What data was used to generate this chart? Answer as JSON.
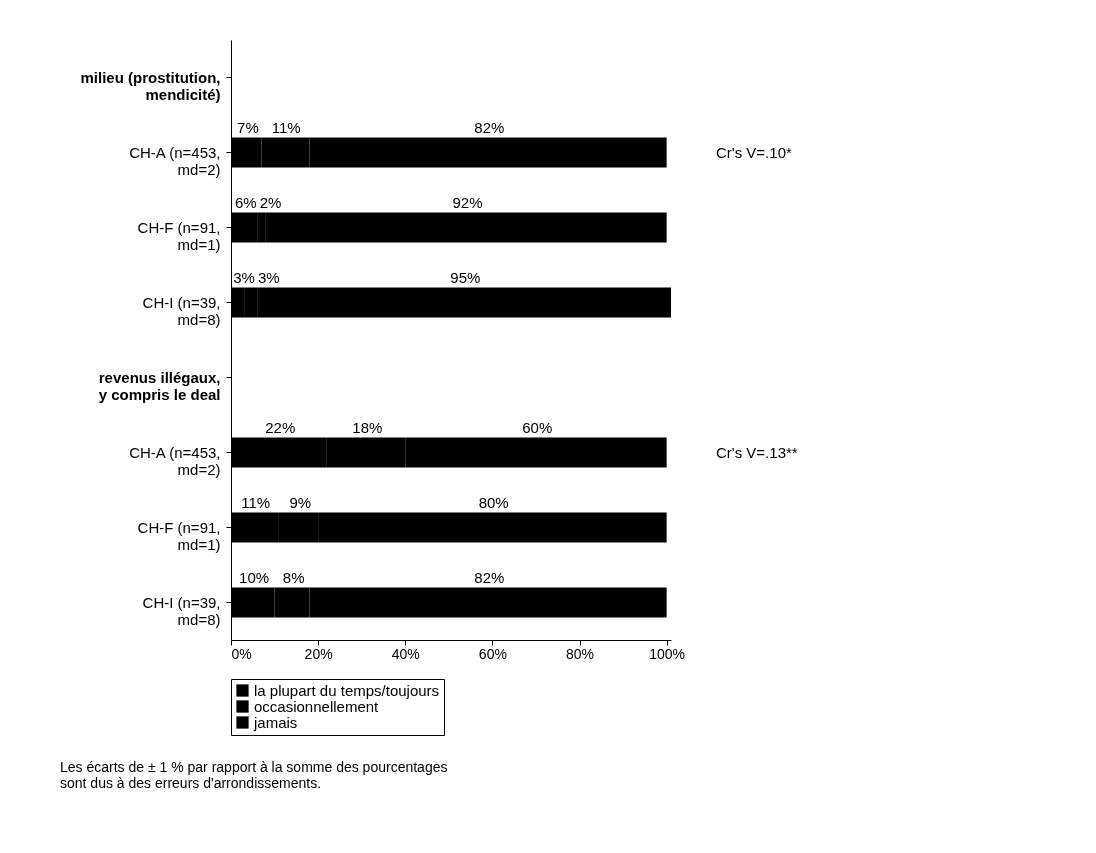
{
  "chart_data": {
    "type": "bar",
    "orientation": "horizontal",
    "stacked": true,
    "categories": [
      "milieu (prostitution,\nmendicité)",
      "CH-A (n=453,\nmd=2)",
      "CH-F (n=91,\nmd=1)",
      "CH-I (n=39,\nmd=8)",
      "revenus illégaux,\ny compris le deal",
      "CH-A (n=453,\nmd=2)",
      "CH-F (n=91,\nmd=1)",
      "CH-I (n=39,\nmd=8)"
    ],
    "series": [
      {
        "name": "la plupart du temps/toujours",
        "color": "#000000",
        "values": [
          null,
          7,
          6,
          3,
          null,
          22,
          11,
          10
        ],
        "value_labels": [
          null,
          "7%",
          "6%",
          "3%",
          null,
          "22%",
          "11%",
          "10%"
        ]
      },
      {
        "name": "occasionnellement",
        "color": "#000000",
        "values": [
          null,
          11,
          2,
          3,
          null,
          18,
          9,
          8
        ],
        "value_labels": [
          null,
          "11%",
          "2%",
          "3%",
          null,
          "18%",
          "9%",
          "8%"
        ]
      },
      {
        "name": "jamais",
        "color": "#000000",
        "values": [
          null,
          82,
          92,
          95,
          null,
          60,
          80,
          82
        ],
        "value_labels": [
          null,
          "82%",
          "92%",
          "95%",
          null,
          "60%",
          "80%",
          "82%"
        ]
      }
    ],
    "xlim": [
      0,
      101
    ],
    "xticks": [
      {
        "value": 0,
        "label": "0%"
      },
      {
        "value": 20,
        "label": "20%"
      },
      {
        "value": 40,
        "label": "40%"
      },
      {
        "value": 60,
        "label": "60%"
      },
      {
        "value": 80,
        "label": "80%"
      },
      {
        "value": 100,
        "label": "100%"
      }
    ],
    "grid": false,
    "legend": "bottom",
    "annotations": [
      "Cr's V=.10*",
      "Cr's V=.13**",
      "Les écarts de ± 1 % par rapport à la somme des pourcentages sont dus à des erreurs d'arrondissements."
    ]
  }
}
